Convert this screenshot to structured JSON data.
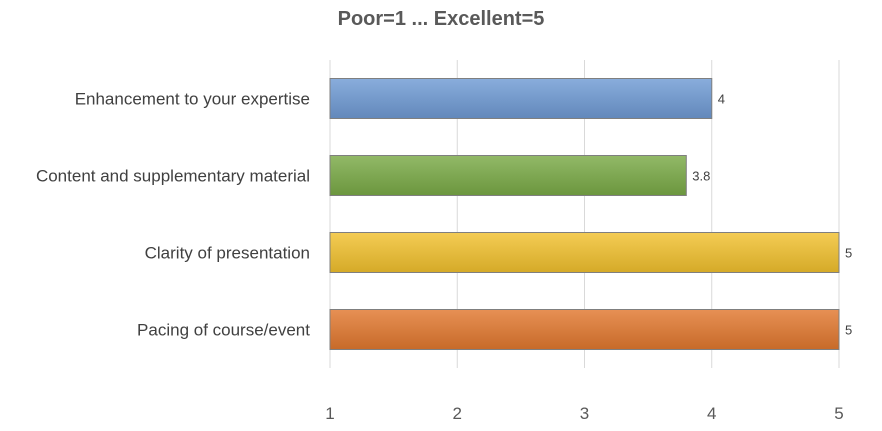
{
  "chart_data": {
    "type": "bar",
    "orientation": "horizontal",
    "title": "Poor=1 ... Excellent=5",
    "categories": [
      "Enhancement to your expertise",
      "Content and supplementary material",
      "Clarity of presentation",
      "Pacing of course/event"
    ],
    "values": [
      4,
      3.8,
      5,
      5
    ],
    "data_labels": [
      "4",
      "3.8",
      "5",
      "5"
    ],
    "bar_colors": [
      "#6f9bd4",
      "#7aaa46",
      "#f2c12e",
      "#e2782f"
    ],
    "xlim": [
      1,
      5
    ],
    "xticks": [
      "1",
      "2",
      "3",
      "4",
      "5"
    ],
    "xlabel": "",
    "ylabel": "",
    "grid": "vertical",
    "legend": "none"
  }
}
